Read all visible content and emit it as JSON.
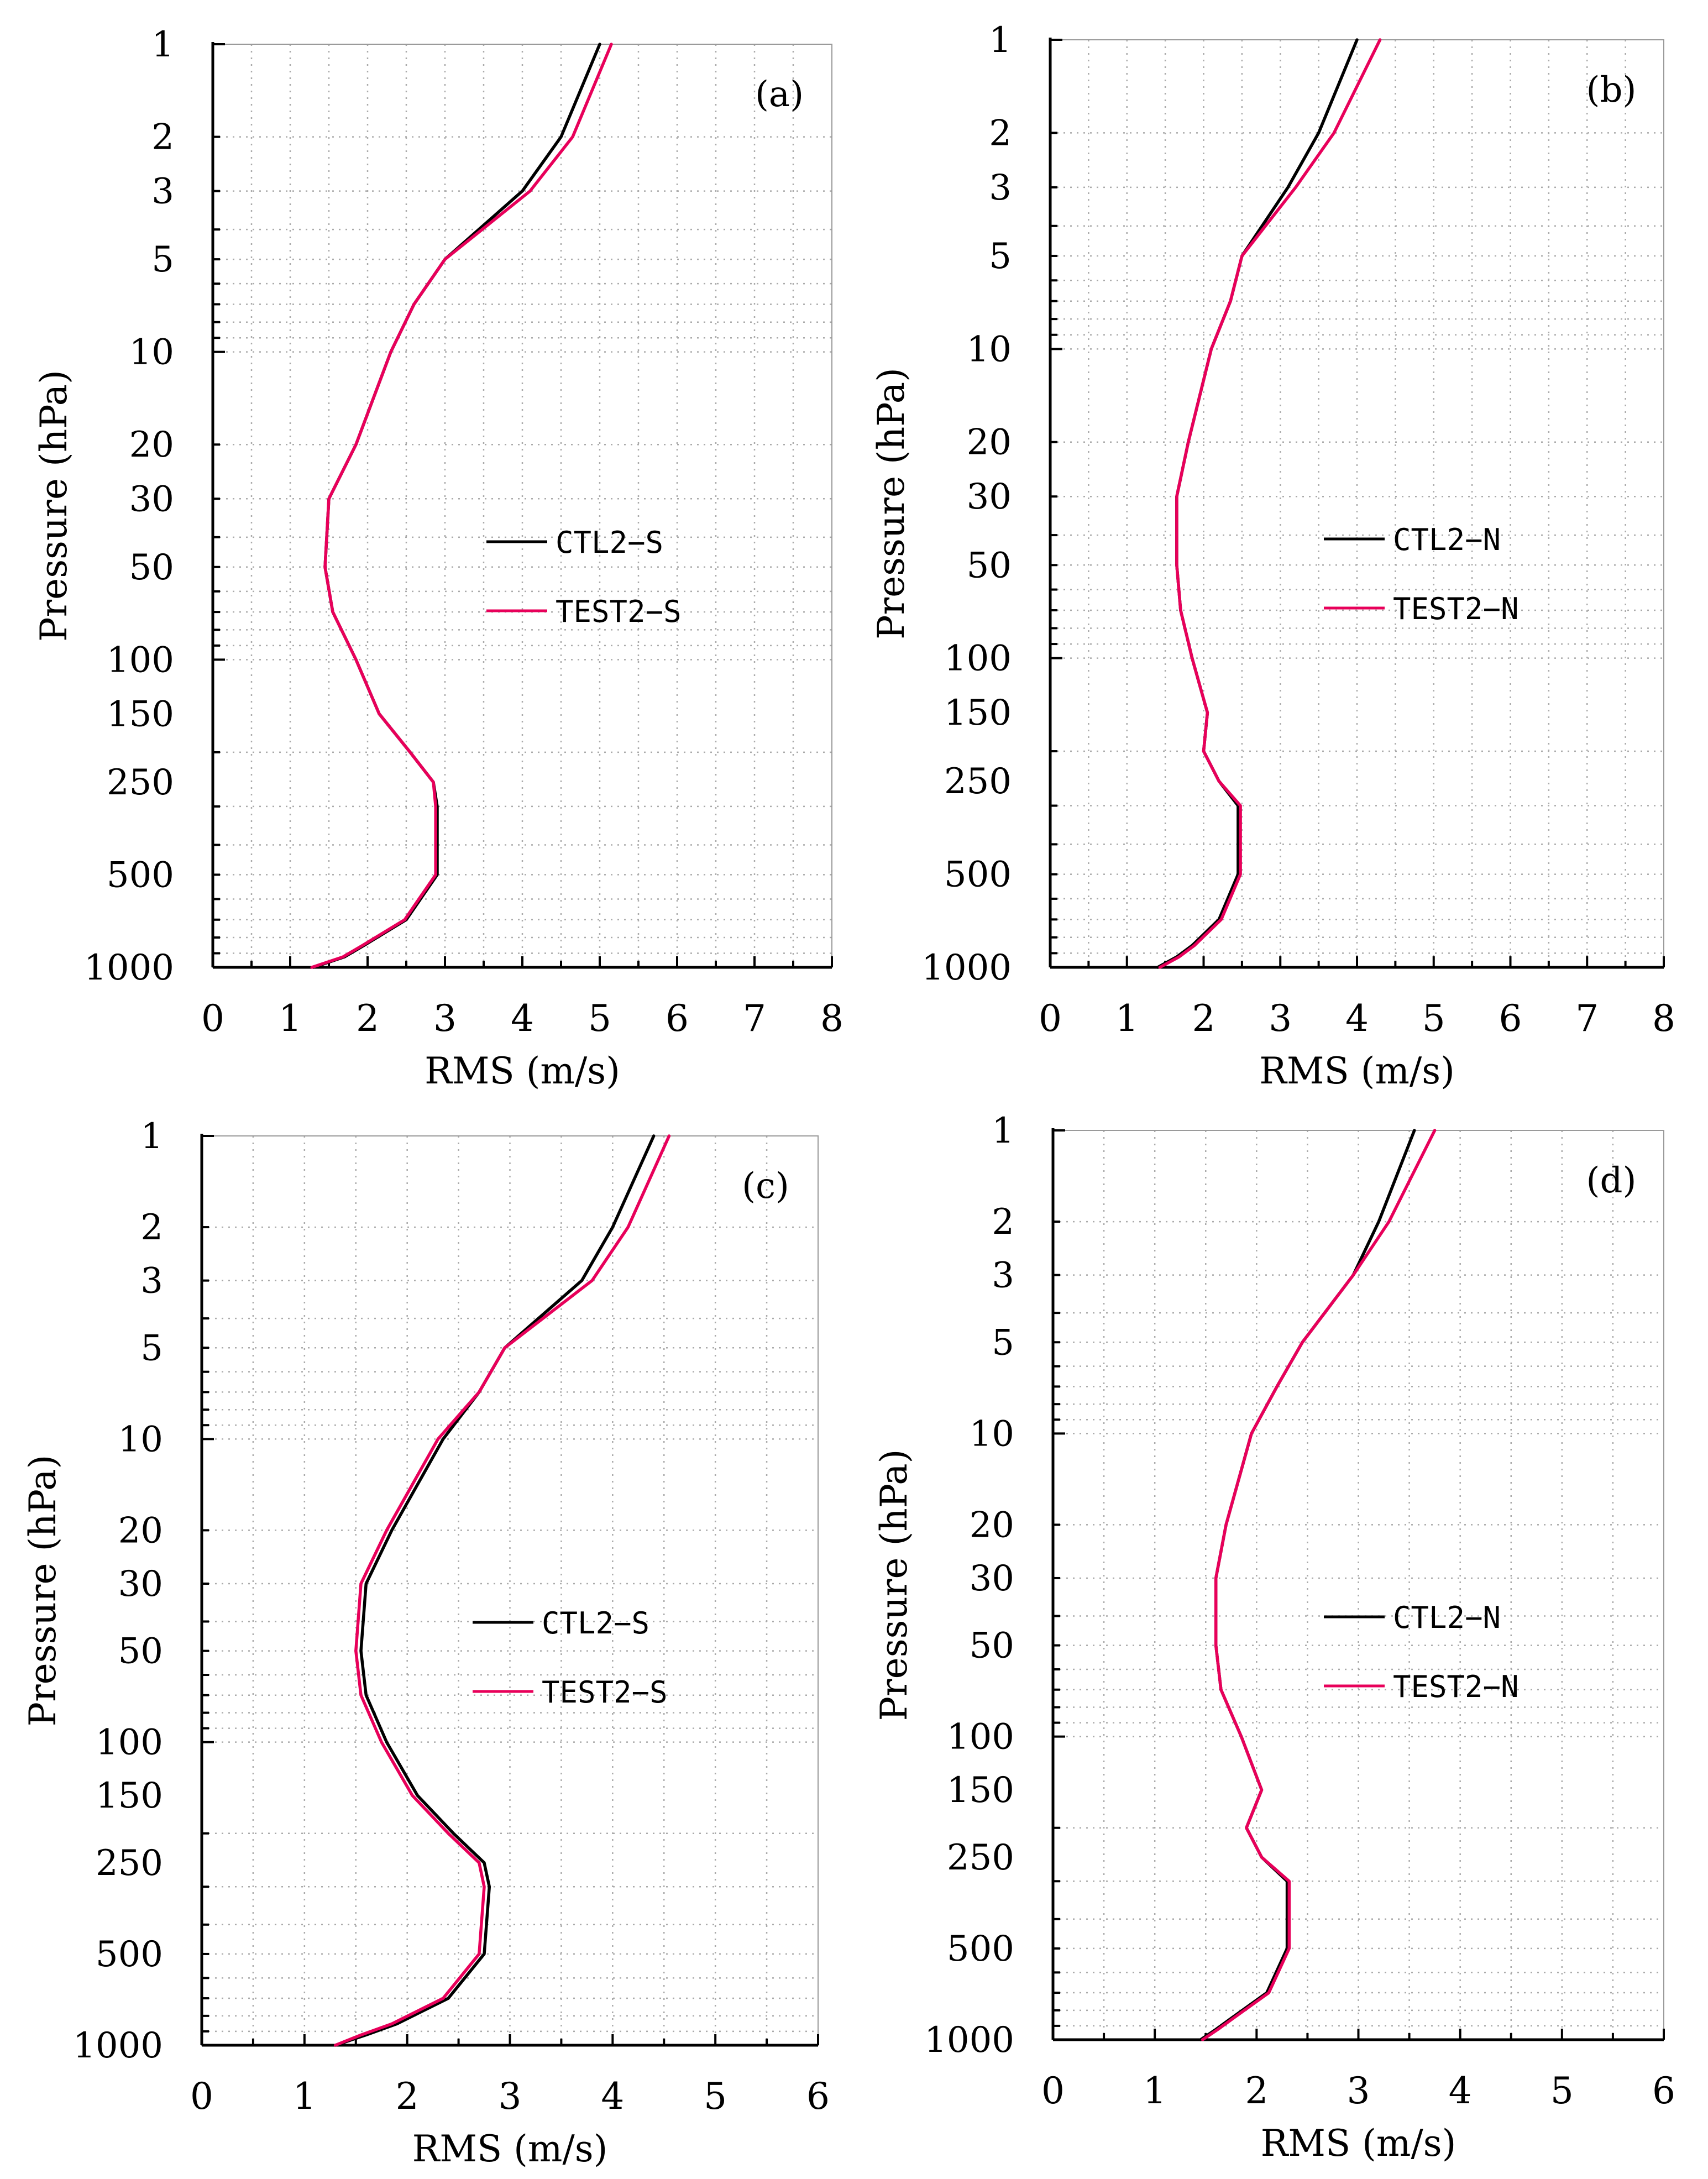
{
  "colors": {
    "ctl": "#000000",
    "test": "#e8005a",
    "grid": "#aaaaaa"
  },
  "chart_data": [
    {
      "type": "line",
      "panel_label": "(a)",
      "xlabel": "RMS (m/s)",
      "ylabel": "Pressure (hPa)",
      "xlim": [
        0,
        8
      ],
      "x_ticks": [
        "0",
        "1",
        "2",
        "3",
        "4",
        "5",
        "6",
        "7",
        "8"
      ],
      "y_scale": "log",
      "y_ticks": [
        "1",
        "2",
        "3",
        "5",
        "10",
        "20",
        "30",
        "50",
        "100",
        "150",
        "250",
        "500",
        "1000"
      ],
      "legend": [
        "CTL2−S",
        "TEST2−S"
      ],
      "grid": true,
      "levels": [
        1,
        2,
        3,
        5,
        7,
        10,
        20,
        30,
        50,
        70,
        100,
        150,
        200,
        250,
        300,
        500,
        700,
        850,
        925,
        1000
      ],
      "series": [
        {
          "name": "CTL2−S",
          "values": [
            5.0,
            4.5,
            4.0,
            3.0,
            2.6,
            2.3,
            1.85,
            1.5,
            1.45,
            1.55,
            1.85,
            2.15,
            2.55,
            2.85,
            2.9,
            2.9,
            2.5,
            1.95,
            1.7,
            1.3
          ]
        },
        {
          "name": "TEST2−S",
          "values": [
            5.15,
            4.65,
            4.1,
            3.0,
            2.6,
            2.3,
            1.85,
            1.5,
            1.45,
            1.55,
            1.85,
            2.15,
            2.55,
            2.85,
            2.88,
            2.88,
            2.48,
            1.93,
            1.68,
            1.28
          ]
        }
      ]
    },
    {
      "type": "line",
      "panel_label": "(b)",
      "xlabel": "RMS (m/s)",
      "ylabel": "Pressure (hPa)",
      "xlim": [
        0,
        8
      ],
      "x_ticks": [
        "0",
        "1",
        "2",
        "3",
        "4",
        "5",
        "6",
        "7",
        "8"
      ],
      "y_scale": "log",
      "y_ticks": [
        "1",
        "2",
        "3",
        "5",
        "10",
        "20",
        "30",
        "50",
        "100",
        "150",
        "250",
        "500",
        "1000"
      ],
      "legend": [
        "CTL2−N",
        "TEST2−N"
      ],
      "grid": true,
      "levels": [
        1,
        2,
        3,
        5,
        7,
        10,
        20,
        30,
        50,
        70,
        100,
        150,
        200,
        250,
        300,
        500,
        700,
        850,
        925,
        1000
      ],
      "series": [
        {
          "name": "CTL2−N",
          "values": [
            4.0,
            3.5,
            3.1,
            2.5,
            2.35,
            2.1,
            1.8,
            1.65,
            1.65,
            1.7,
            1.85,
            2.05,
            2.0,
            2.2,
            2.45,
            2.45,
            2.2,
            1.85,
            1.65,
            1.4
          ]
        },
        {
          "name": "TEST2−N",
          "values": [
            4.3,
            3.7,
            3.2,
            2.5,
            2.35,
            2.1,
            1.8,
            1.65,
            1.65,
            1.7,
            1.85,
            2.05,
            2.0,
            2.2,
            2.48,
            2.48,
            2.23,
            1.88,
            1.68,
            1.43
          ]
        }
      ]
    },
    {
      "type": "line",
      "panel_label": "(c)",
      "xlabel": "RMS (m/s)",
      "ylabel": "Pressure (hPa)",
      "xlim": [
        0,
        6
      ],
      "x_ticks": [
        "0",
        "1",
        "2",
        "3",
        "4",
        "5",
        "6"
      ],
      "y_scale": "log",
      "y_ticks": [
        "1",
        "2",
        "3",
        "5",
        "10",
        "20",
        "30",
        "50",
        "100",
        "150",
        "250",
        "500",
        "1000"
      ],
      "legend": [
        "CTL2−S",
        "TEST2−S"
      ],
      "grid": true,
      "levels": [
        1,
        2,
        3,
        5,
        7,
        10,
        20,
        30,
        50,
        70,
        100,
        150,
        200,
        250,
        300,
        500,
        700,
        850,
        925,
        1000
      ],
      "series": [
        {
          "name": "CTL2−S",
          "values": [
            4.4,
            4.0,
            3.7,
            2.95,
            2.7,
            2.35,
            1.85,
            1.6,
            1.55,
            1.6,
            1.8,
            2.1,
            2.45,
            2.75,
            2.8,
            2.75,
            2.4,
            1.9,
            1.6,
            1.3
          ]
        },
        {
          "name": "TEST2−S",
          "values": [
            4.55,
            4.15,
            3.8,
            2.95,
            2.7,
            2.3,
            1.8,
            1.55,
            1.5,
            1.55,
            1.75,
            2.05,
            2.4,
            2.7,
            2.75,
            2.7,
            2.35,
            1.85,
            1.55,
            1.3
          ]
        }
      ]
    },
    {
      "type": "line",
      "panel_label": "(d)",
      "xlabel": "RMS (m/s)",
      "ylabel": "Pressure (hPa)",
      "xlim": [
        0,
        6
      ],
      "x_ticks": [
        "0",
        "1",
        "2",
        "3",
        "4",
        "5",
        "6"
      ],
      "y_scale": "log",
      "y_ticks": [
        "1",
        "2",
        "3",
        "5",
        "10",
        "20",
        "30",
        "50",
        "100",
        "150",
        "250",
        "500",
        "1000"
      ],
      "legend": [
        "CTL2−N",
        "TEST2−N"
      ],
      "grid": true,
      "levels": [
        1,
        2,
        3,
        5,
        7,
        10,
        20,
        30,
        50,
        70,
        100,
        150,
        200,
        250,
        300,
        500,
        700,
        850,
        925,
        1000
      ],
      "series": [
        {
          "name": "CTL2−N",
          "values": [
            3.55,
            3.2,
            2.95,
            2.45,
            2.2,
            1.95,
            1.7,
            1.6,
            1.6,
            1.65,
            1.85,
            2.05,
            1.9,
            2.05,
            2.3,
            2.3,
            2.1,
            1.75,
            1.6,
            1.45
          ]
        },
        {
          "name": "TEST2−N",
          "values": [
            3.75,
            3.3,
            2.95,
            2.45,
            2.2,
            1.95,
            1.7,
            1.6,
            1.6,
            1.65,
            1.85,
            2.05,
            1.9,
            2.05,
            2.32,
            2.32,
            2.12,
            1.77,
            1.62,
            1.47
          ]
        }
      ]
    }
  ]
}
